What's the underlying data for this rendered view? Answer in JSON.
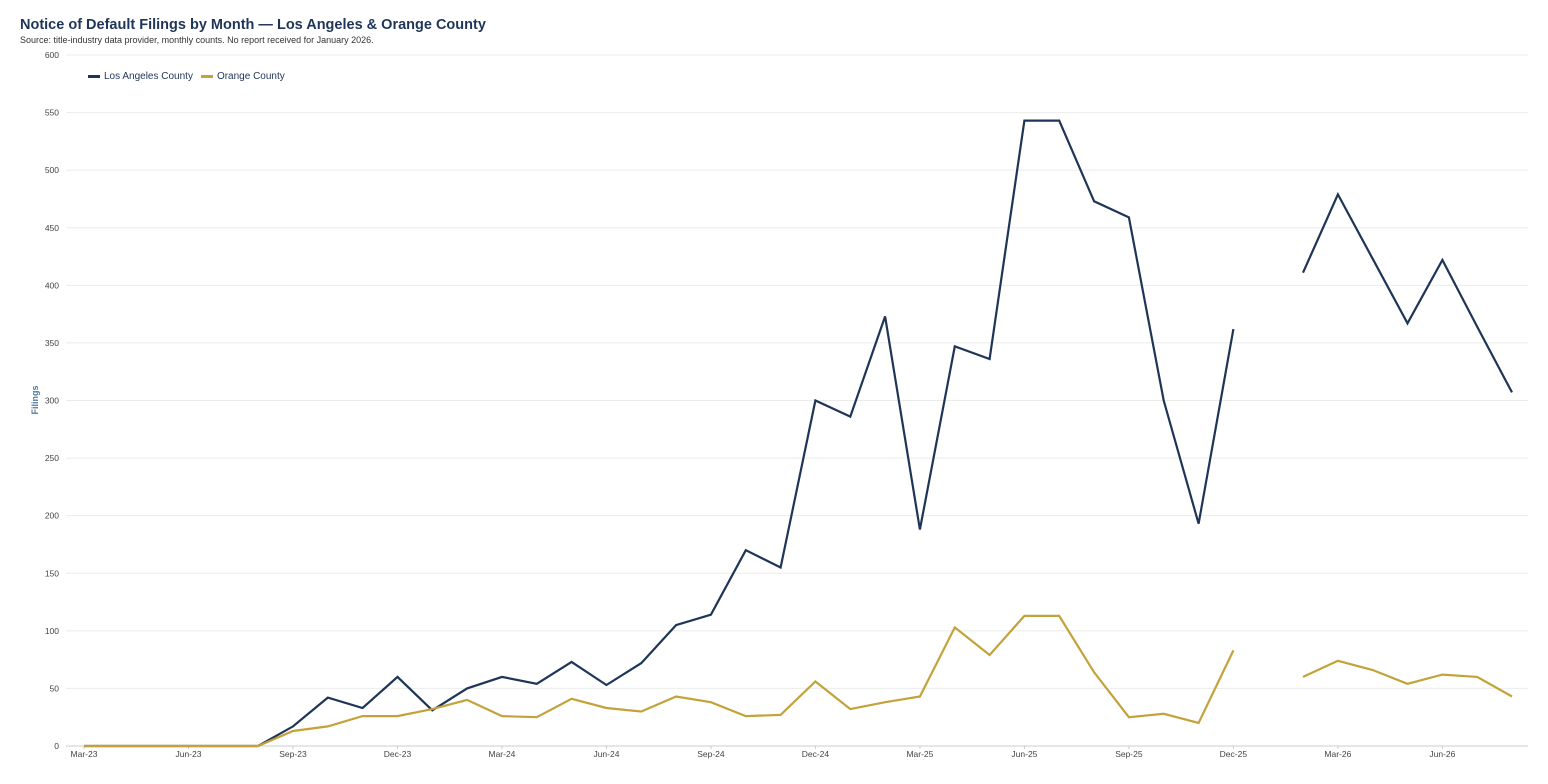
{
  "chart_data": {
    "type": "line",
    "title": "Notice of Default Filings by Month — Los Angeles & Orange County",
    "subtitle": "Source: title-industry data provider, monthly counts. No report received for January 2026.",
    "xlabel": "",
    "ylabel": "Filings",
    "ylim": [
      0,
      600
    ],
    "yticks": [
      0,
      50,
      100,
      150,
      200,
      250,
      300,
      350,
      400,
      450,
      500,
      550,
      600
    ],
    "grid": "horizontal",
    "legend": "top-left",
    "x": [
      "2023-03",
      "2023-04",
      "2023-05",
      "2023-06",
      "2023-07",
      "2023-08",
      "2023-09",
      "2023-10",
      "2023-11",
      "2023-12",
      "2024-01",
      "2024-02",
      "2024-03",
      "2024-04",
      "2024-05",
      "2024-06",
      "2024-07",
      "2024-08",
      "2024-09",
      "2024-10",
      "2024-11",
      "2024-12",
      "2025-01",
      "2025-02",
      "2025-03",
      "2025-04",
      "2025-05",
      "2025-06",
      "2025-07",
      "2025-08",
      "2025-09",
      "2025-10",
      "2025-11",
      "2025-12",
      "2026-01",
      "2026-02",
      "2026-03",
      "2026-04",
      "2026-05",
      "2026-06",
      "2026-07",
      "2026-08"
    ],
    "xtick_labels": [
      "Mar-23",
      "Jun-23",
      "Sep-23",
      "Dec-23",
      "Mar-24",
      "Jun-24",
      "Sep-24",
      "Dec-24",
      "Mar-25",
      "Jun-25",
      "Sep-25",
      "Dec-25",
      "Mar-26",
      "Jun-26"
    ],
    "series": [
      {
        "name": "Los Angeles County",
        "color": "#1f3557",
        "values": [
          0,
          0,
          0,
          0,
          0,
          0,
          17,
          42,
          33,
          60,
          31,
          50,
          60,
          54,
          73,
          53,
          72,
          105,
          114,
          170,
          155,
          300,
          286,
          373,
          188,
          347,
          336,
          543,
          543,
          473,
          459,
          300,
          193,
          362,
          null,
          411,
          479,
          423,
          367,
          422,
          364,
          307
        ]
      },
      {
        "name": "Orange County",
        "color": "#c4a23a",
        "values": [
          0,
          0,
          0,
          0,
          0,
          0,
          13,
          17,
          26,
          26,
          32,
          40,
          26,
          25,
          41,
          33,
          30,
          43,
          38,
          26,
          27,
          56,
          32,
          38,
          43,
          103,
          79,
          113,
          113,
          64,
          25,
          28,
          20,
          83,
          null,
          60,
          74,
          66,
          54,
          62,
          60,
          43
        ]
      }
    ]
  }
}
